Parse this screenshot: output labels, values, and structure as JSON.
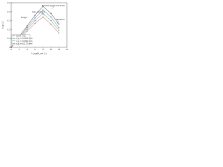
{
  "chart_data": {
    "type": "line",
    "x_label": "U_sg/U_mf (-)",
    "y_label": "ε_g (-)",
    "x": [
      0,
      2,
      4,
      6,
      8,
      10,
      12
    ],
    "series": [
      {
        "name": "Steel only",
        "color": "#222222",
        "values": [
          0,
          0.12,
          0.24,
          0.36,
          0.46,
          0.38,
          0.26
        ]
      },
      {
        "name": "d_p = 0.053 mm",
        "color": "#3a5fa0",
        "values": [
          0,
          0.11,
          0.22,
          0.33,
          0.42,
          0.34,
          0.22
        ]
      },
      {
        "name": "d_p = 0.090 mm",
        "color": "#4a8a4a",
        "values": [
          0,
          0.1,
          0.2,
          0.3,
          0.38,
          0.3,
          0.19
        ]
      },
      {
        "name": "d_p = 0.177 mm",
        "color": "#a04040",
        "values": [
          0,
          0.09,
          0.18,
          0.27,
          0.34,
          0.26,
          0.16
        ]
      }
    ],
    "annotations": [
      "Gas pockets",
      "Ridge",
      "Bubble agglomeration",
      "Spatters"
    ],
    "xlim": [
      0,
      14
    ],
    "xticks": [
      0,
      2,
      4,
      6,
      8,
      10,
      12,
      14
    ],
    "ylim": [
      0,
      0.5
    ],
    "yticks": [
      0,
      0.1,
      0.2,
      0.3,
      0.4,
      0.5
    ],
    "legend": "lower left",
    "grid": false
  }
}
